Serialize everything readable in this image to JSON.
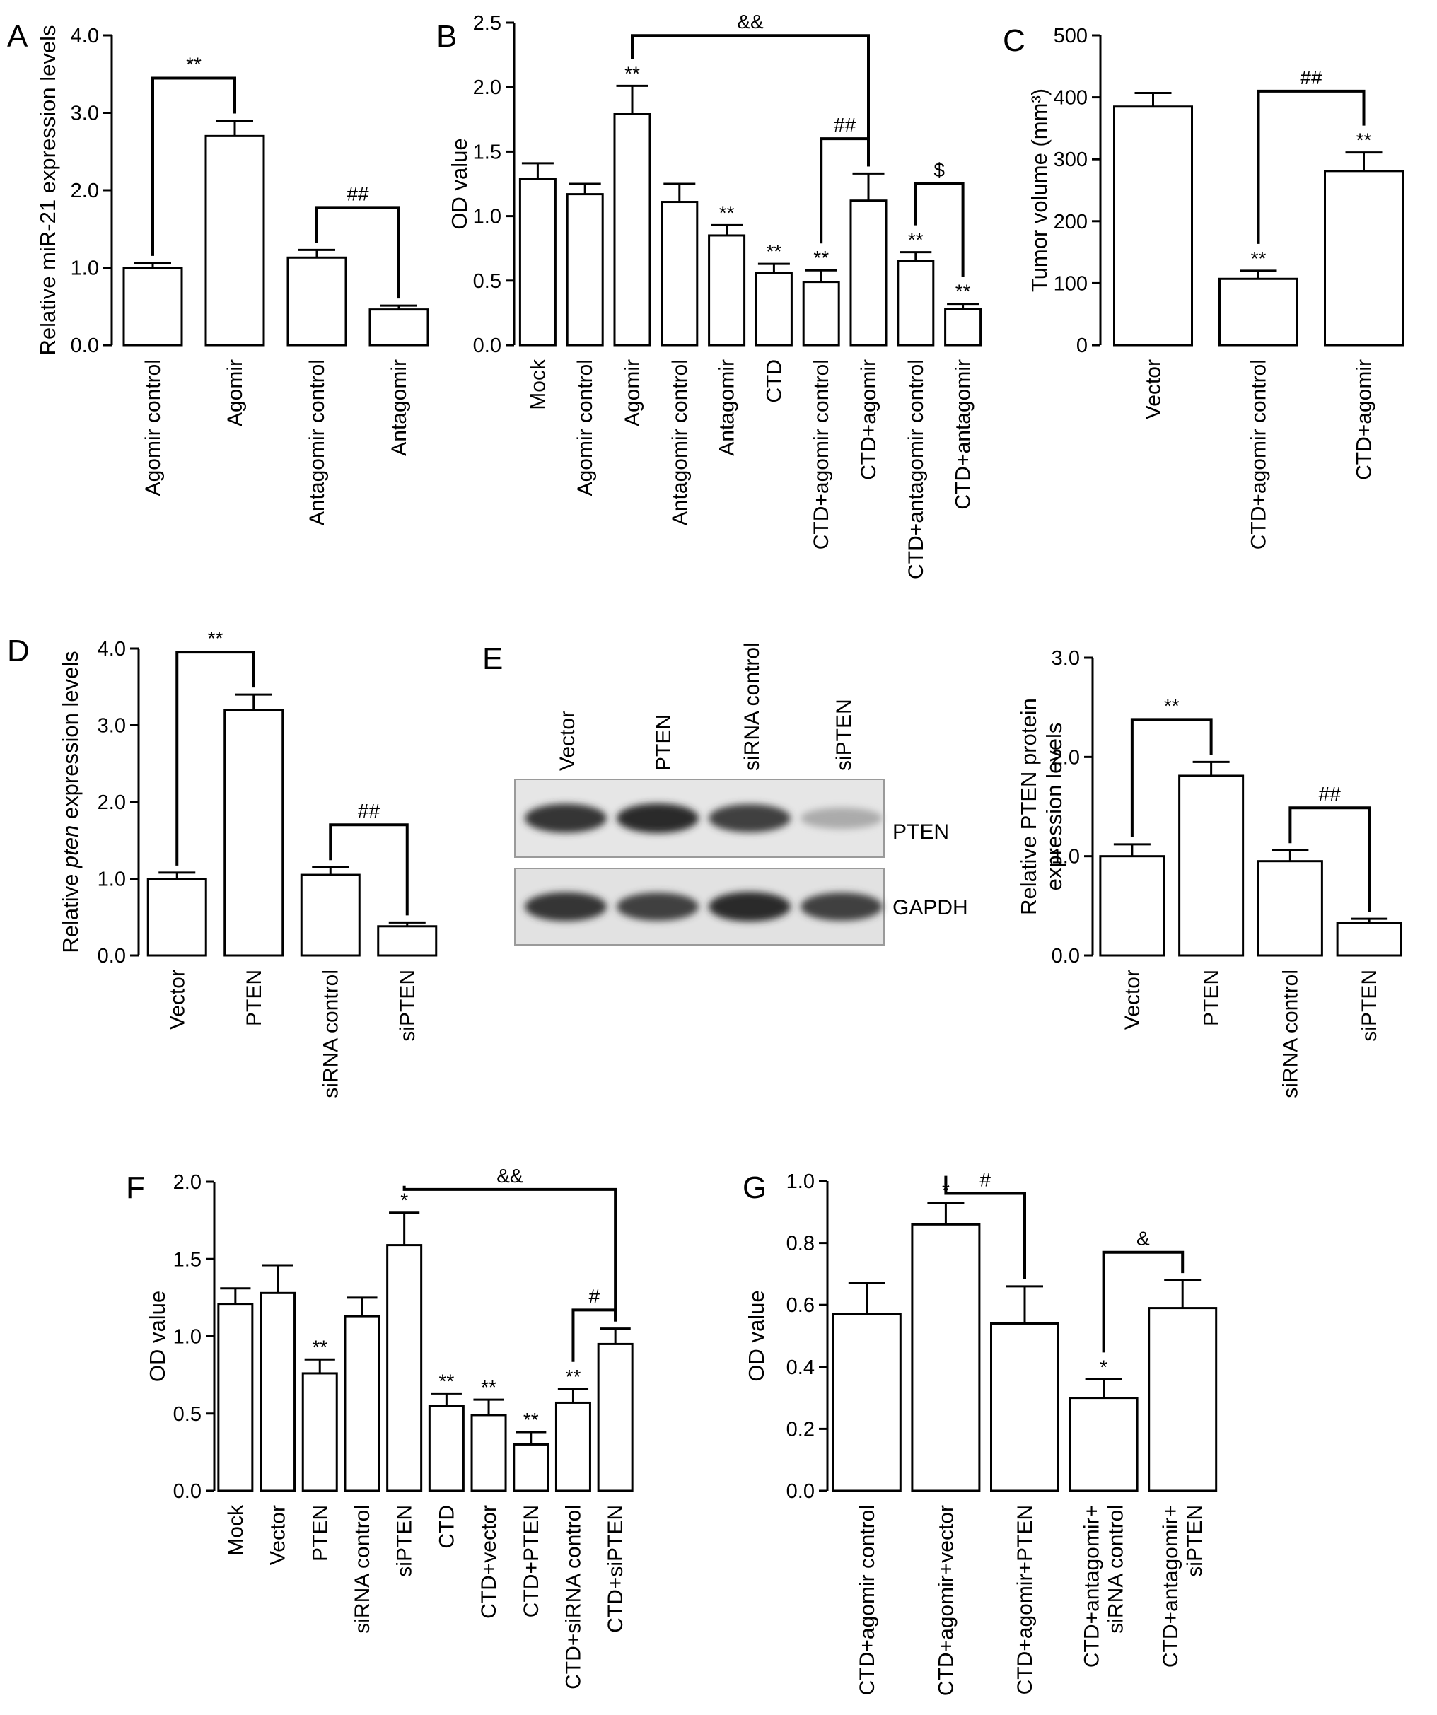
{
  "chart_data": [
    {
      "id": "A",
      "type": "bar",
      "panel_label": "A",
      "ylabel": "Relative miR-21 expression levels",
      "ylim": [
        0,
        4
      ],
      "ticks": [
        "0.0",
        "1.0",
        "2.0",
        "3.0",
        "4.0"
      ],
      "categories": [
        "Agomir control",
        "Agomir",
        "Antagomir control",
        "Antagomir"
      ],
      "values": [
        1.0,
        2.7,
        1.13,
        0.46
      ],
      "errors": [
        0.06,
        0.2,
        0.1,
        0.05
      ],
      "bar_marks": [
        "",
        "",
        "",
        ""
      ],
      "brackets": [
        {
          "from": 0,
          "to": 1,
          "label": "**"
        },
        {
          "from": 2,
          "to": 3,
          "label": "##"
        }
      ]
    },
    {
      "id": "B",
      "type": "bar",
      "panel_label": "B",
      "ylabel": "OD value",
      "ylim": [
        0,
        2.5
      ],
      "ticks": [
        "0.0",
        "0.5",
        "1.0",
        "1.5",
        "2.0",
        "2.5"
      ],
      "categories": [
        "Mock",
        "Agomir control",
        "Agomir",
        "Antagomir control",
        "Antagomir",
        "CTD",
        "CTD+agomir control",
        "CTD+agomir",
        "CTD+antagomir control",
        "CTD+antagomir"
      ],
      "values": [
        1.29,
        1.17,
        1.79,
        1.11,
        0.85,
        0.56,
        0.49,
        1.12,
        0.65,
        0.28
      ],
      "errors": [
        0.12,
        0.08,
        0.22,
        0.14,
        0.08,
        0.07,
        0.09,
        0.21,
        0.07,
        0.04
      ],
      "bar_marks": [
        "",
        "",
        "**",
        "",
        "**",
        "**",
        "**",
        "",
        "**",
        "**"
      ],
      "brackets": [
        {
          "from": 2,
          "to": 7,
          "label": "&&",
          "y": 2.4
        },
        {
          "from": 6,
          "to": 7,
          "label": "##",
          "y": 1.6
        },
        {
          "from": 8,
          "to": 9,
          "label": "$",
          "y": 1.25
        }
      ]
    },
    {
      "id": "C",
      "type": "bar",
      "panel_label": "C",
      "ylabel": "Tumor volume (mm³)",
      "ylim": [
        0,
        500
      ],
      "ticks": [
        "0",
        "100",
        "200",
        "300",
        "400",
        "500"
      ],
      "categories": [
        "Vector",
        "CTD+agomir control",
        "CTD+agomir"
      ],
      "values": [
        385,
        107,
        281
      ],
      "errors": [
        22,
        13,
        30
      ],
      "bar_marks": [
        "",
        "**",
        "**"
      ],
      "brackets": [
        {
          "from": 1,
          "to": 2,
          "label": "##",
          "y": 410
        }
      ]
    },
    {
      "id": "D",
      "type": "bar",
      "panel_label": "D",
      "ylabel_parts": [
        "Relative ",
        "pten",
        " expression levels"
      ],
      "ylim": [
        0,
        4
      ],
      "ticks": [
        "0.0",
        "1.0",
        "2.0",
        "3.0",
        "4.0"
      ],
      "categories": [
        "Vector",
        "PTEN",
        "siRNA control",
        "siPTEN"
      ],
      "values": [
        1.0,
        3.2,
        1.05,
        0.38
      ],
      "errors": [
        0.08,
        0.2,
        0.1,
        0.05
      ],
      "bar_marks": [
        "",
        "",
        "",
        ""
      ],
      "brackets": [
        {
          "from": 0,
          "to": 1,
          "label": "**"
        },
        {
          "from": 2,
          "to": 3,
          "label": "##"
        }
      ]
    },
    {
      "id": "E",
      "type": "bar",
      "panel_label": "E",
      "ylabel_lines": [
        "Relative PTEN protein",
        "expression levels"
      ],
      "ylim": [
        0,
        3
      ],
      "ticks": [
        "0.0",
        "1.0",
        "2.0",
        "3.0"
      ],
      "categories": [
        "Vector",
        "PTEN",
        "siRNA control",
        "siPTEN"
      ],
      "values": [
        1.0,
        1.81,
        0.95,
        0.33
      ],
      "errors": [
        0.12,
        0.14,
        0.11,
        0.04
      ],
      "bar_marks": [
        "",
        "",
        "",
        ""
      ],
      "brackets": [
        {
          "from": 0,
          "to": 1,
          "label": "**"
        },
        {
          "from": 2,
          "to": 3,
          "label": "##"
        }
      ]
    },
    {
      "id": "F",
      "type": "bar",
      "panel_label": "F",
      "ylabel": "OD value",
      "ylim": [
        0,
        2
      ],
      "ticks": [
        "0.0",
        "0.5",
        "1.0",
        "1.5",
        "2.0"
      ],
      "categories": [
        "Mock",
        "Vector",
        "PTEN",
        "siRNA control",
        "siPTEN",
        "CTD",
        "CTD+vector",
        "CTD+PTEN",
        "CTD+siRNA control",
        "CTD+siPTEN"
      ],
      "values": [
        1.21,
        1.28,
        0.76,
        1.13,
        1.59,
        0.55,
        0.49,
        0.3,
        0.57,
        0.95
      ],
      "errors": [
        0.1,
        0.18,
        0.09,
        0.12,
        0.21,
        0.08,
        0.1,
        0.08,
        0.09,
        0.1
      ],
      "bar_marks": [
        "",
        "",
        "**",
        "",
        "*",
        "**",
        "**",
        "**",
        "**",
        ""
      ],
      "brackets": [
        {
          "from": 4,
          "to": 9,
          "label": "&&",
          "y": 1.95
        },
        {
          "from": 8,
          "to": 9,
          "label": "#",
          "y": 1.17
        }
      ]
    },
    {
      "id": "G",
      "type": "bar",
      "panel_label": "G",
      "ylabel": "OD value",
      "ylim": [
        0,
        1
      ],
      "ticks": [
        "0.0",
        "0.2",
        "0.4",
        "0.6",
        "0.8",
        "1.0"
      ],
      "categories": [
        [
          "CTD+agomir control"
        ],
        [
          "CTD+agomir+vector"
        ],
        [
          "CTD+agomir+PTEN"
        ],
        [
          "CTD+antagomir+",
          "siRNA control"
        ],
        [
          "CTD+antagomir+",
          "siPTEN"
        ]
      ],
      "values": [
        0.57,
        0.86,
        0.54,
        0.3,
        0.59
      ],
      "errors": [
        0.1,
        0.07,
        0.12,
        0.06,
        0.09
      ],
      "bar_marks": [
        "",
        "*",
        "",
        "*",
        ""
      ],
      "brackets": [
        {
          "from": 1,
          "to": 2,
          "label": "#",
          "y": 0.96
        },
        {
          "from": 3,
          "to": 4,
          "label": "&",
          "y": 0.77
        }
      ]
    }
  ],
  "blot": {
    "lanes": [
      "Vector",
      "PTEN",
      "siRNA control",
      "siPTEN"
    ],
    "bands": [
      {
        "label": "PTEN",
        "intensities": [
          0.85,
          0.9,
          0.8,
          0.3
        ]
      },
      {
        "label": "GAPDH",
        "intensities": [
          0.85,
          0.8,
          0.9,
          0.8
        ]
      }
    ]
  }
}
